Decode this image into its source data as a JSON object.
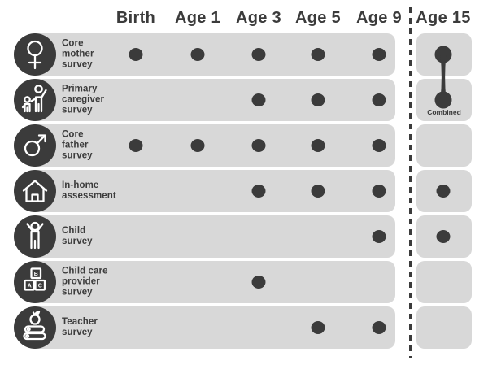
{
  "columns": [
    "Birth",
    "Age 1",
    "Age 3",
    "Age 5",
    "Age 9",
    "Age 15"
  ],
  "rows": [
    {
      "id": "core-mother-survey",
      "label_lines": [
        "Core",
        "mother",
        "survey"
      ],
      "icon": "female-icon",
      "dots": [
        true,
        true,
        true,
        true,
        true,
        "combined"
      ]
    },
    {
      "id": "primary-caregiver-survey",
      "label_lines": [
        "Primary",
        "caregiver",
        "survey"
      ],
      "icon": "caregiver-icon",
      "dots": [
        false,
        false,
        true,
        true,
        true,
        "combined"
      ]
    },
    {
      "id": "core-father-survey",
      "label_lines": [
        "Core",
        "father",
        "survey"
      ],
      "icon": "male-icon",
      "dots": [
        true,
        true,
        true,
        true,
        true,
        false
      ]
    },
    {
      "id": "in-home-assessment",
      "label_lines": [
        "In-home",
        "assessment"
      ],
      "icon": "home-icon",
      "dots": [
        false,
        false,
        true,
        true,
        true,
        true
      ]
    },
    {
      "id": "child-survey",
      "label_lines": [
        "Child",
        "survey"
      ],
      "icon": "child-icon",
      "dots": [
        false,
        false,
        false,
        false,
        true,
        true
      ]
    },
    {
      "id": "child-care-provider-survey",
      "label_lines": [
        "Child care",
        "provider",
        "survey"
      ],
      "icon": "blocks-icon",
      "dots": [
        false,
        false,
        true,
        false,
        false,
        false
      ]
    },
    {
      "id": "teacher-survey",
      "label_lines": [
        "Teacher",
        "survey"
      ],
      "icon": "apple-books-icon",
      "dots": [
        false,
        false,
        false,
        true,
        true,
        false
      ]
    }
  ],
  "combined_connector": {
    "label": "Combined",
    "column": "Age 15",
    "connects_rows": [
      "Core mother survey",
      "Primary caregiver survey"
    ]
  },
  "divider": {
    "before_column": "Age 15",
    "style": "dashed"
  },
  "colors": {
    "dark": "#3b3b3b",
    "row_background": "#d8d8d8",
    "page_background": "#ffffff"
  }
}
